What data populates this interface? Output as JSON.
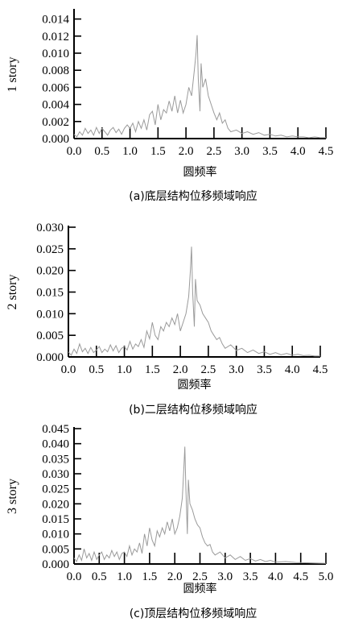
{
  "chart_data": [
    {
      "type": "line",
      "caption": "(a)底层结构位移频域响应",
      "xlabel": "圆频率",
      "ylabel": "1 story",
      "xlim": [
        0,
        4.5
      ],
      "ylim": [
        0,
        0.015
      ],
      "xticks": [
        "0.0",
        "0.5",
        "1.0",
        "1.5",
        "2.0",
        "2.5",
        "3.0",
        "3.5",
        "4.0",
        "4.5"
      ],
      "yticks": [
        "0.000",
        "0.002",
        "0.004",
        "0.006",
        "0.008",
        "0.010",
        "0.012",
        "0.014"
      ],
      "series": [
        {
          "x": [
            0,
            0.05,
            0.1,
            0.15,
            0.2,
            0.25,
            0.3,
            0.35,
            0.4,
            0.45,
            0.5,
            0.55,
            0.6,
            0.65,
            0.7,
            0.75,
            0.8,
            0.85,
            0.9,
            0.95,
            1.0,
            1.05,
            1.1,
            1.15,
            1.2,
            1.25,
            1.3,
            1.35,
            1.4,
            1.45,
            1.5,
            1.55,
            1.6,
            1.65,
            1.7,
            1.75,
            1.8,
            1.85,
            1.9,
            1.95,
            2.0,
            2.05,
            2.1,
            2.15,
            2.18,
            2.2,
            2.22,
            2.25,
            2.27,
            2.3,
            2.35,
            2.4,
            2.45,
            2.5,
            2.55,
            2.6,
            2.65,
            2.7,
            2.75,
            2.8,
            2.9,
            3.0,
            3.1,
            3.2,
            3.3,
            3.4,
            3.5,
            3.6,
            3.7,
            3.8,
            3.9,
            4.0,
            4.1,
            4.2,
            4.3,
            4.4,
            4.5
          ],
          "y": [
            0.0005,
            0.0002,
            0.0008,
            0.0004,
            0.0012,
            0.0006,
            0.001,
            0.0004,
            0.0013,
            0.0006,
            0.0012,
            0.0008,
            0.0004,
            0.001,
            0.0013,
            0.0007,
            0.0011,
            0.0005,
            0.0012,
            0.0016,
            0.0012,
            0.0018,
            0.0008,
            0.002,
            0.0012,
            0.0022,
            0.001,
            0.0028,
            0.0032,
            0.0016,
            0.004,
            0.0022,
            0.0034,
            0.003,
            0.0044,
            0.0032,
            0.005,
            0.003,
            0.0045,
            0.003,
            0.004,
            0.006,
            0.005,
            0.008,
            0.01,
            0.0121,
            0.007,
            0.0032,
            0.0088,
            0.006,
            0.007,
            0.005,
            0.004,
            0.003,
            0.0022,
            0.003,
            0.0018,
            0.0022,
            0.0012,
            0.0008,
            0.001,
            0.0006,
            0.0008,
            0.0005,
            0.0007,
            0.0004,
            0.0005,
            0.0003,
            0.0004,
            0.0002,
            0.0003,
            0.0002,
            0.0002,
            0.0001,
            0.0002,
            0.0001,
            0.0001
          ]
        }
      ]
    },
    {
      "type": "line",
      "caption": "(b)二层结构位移频域响应",
      "xlabel": "圆频率",
      "ylabel": "2 story",
      "xlim": [
        0,
        4.5
      ],
      "ylim": [
        0,
        0.03
      ],
      "xticks": [
        "0.0",
        "0.5",
        "1.0",
        "1.5",
        "2.0",
        "2.5",
        "3.0",
        "3.5",
        "4.0",
        "4.5"
      ],
      "yticks": [
        "0.000",
        "0.005",
        "0.010",
        "0.015",
        "0.020",
        "0.025",
        "0.030"
      ],
      "series": [
        {
          "x": [
            0,
            0.05,
            0.1,
            0.15,
            0.2,
            0.25,
            0.3,
            0.35,
            0.4,
            0.45,
            0.5,
            0.55,
            0.6,
            0.65,
            0.7,
            0.75,
            0.8,
            0.85,
            0.9,
            0.95,
            1.0,
            1.05,
            1.1,
            1.15,
            1.2,
            1.25,
            1.3,
            1.35,
            1.4,
            1.45,
            1.5,
            1.55,
            1.6,
            1.65,
            1.7,
            1.75,
            1.8,
            1.85,
            1.9,
            1.95,
            2.0,
            2.05,
            2.1,
            2.15,
            2.18,
            2.2,
            2.22,
            2.25,
            2.27,
            2.3,
            2.35,
            2.4,
            2.45,
            2.5,
            2.55,
            2.6,
            2.65,
            2.7,
            2.75,
            2.8,
            2.9,
            3.0,
            3.1,
            3.2,
            3.3,
            3.4,
            3.5,
            3.6,
            3.7,
            3.8,
            3.9,
            4.0,
            4.1,
            4.2,
            4.3,
            4.4,
            4.5
          ],
          "y": [
            0.0012,
            0.0004,
            0.0018,
            0.0008,
            0.003,
            0.0012,
            0.002,
            0.0008,
            0.0022,
            0.001,
            0.0016,
            0.0024,
            0.001,
            0.0018,
            0.0012,
            0.0028,
            0.0014,
            0.0026,
            0.001,
            0.002,
            0.0024,
            0.0016,
            0.0036,
            0.0018,
            0.003,
            0.0024,
            0.004,
            0.0022,
            0.006,
            0.0042,
            0.008,
            0.005,
            0.004,
            0.007,
            0.006,
            0.008,
            0.007,
            0.009,
            0.0075,
            0.01,
            0.006,
            0.008,
            0.01,
            0.014,
            0.02,
            0.0255,
            0.015,
            0.007,
            0.018,
            0.013,
            0.012,
            0.01,
            0.009,
            0.008,
            0.006,
            0.005,
            0.004,
            0.0045,
            0.003,
            0.002,
            0.0028,
            0.0015,
            0.002,
            0.001,
            0.0016,
            0.0008,
            0.0012,
            0.0006,
            0.001,
            0.0005,
            0.0008,
            0.0004,
            0.0006,
            0.0003,
            0.0004,
            0.0002,
            0.0002
          ]
        }
      ]
    },
    {
      "type": "line",
      "caption": "(c)顶层结构位移频域响应",
      "xlabel": "圆频率",
      "ylabel": "3 story",
      "xlim": [
        0,
        5.0
      ],
      "ylim": [
        0,
        0.045
      ],
      "xticks": [
        "0.0",
        "0.5",
        "1.0",
        "1.5",
        "2.0",
        "2.5",
        "3.0",
        "3.5",
        "4.0",
        "4.5",
        "5.0"
      ],
      "yticks": [
        "0.000",
        "0.005",
        "0.010",
        "0.015",
        "0.020",
        "0.025",
        "0.030",
        "0.035",
        "0.040",
        "0.045"
      ],
      "series": [
        {
          "x": [
            0,
            0.05,
            0.1,
            0.15,
            0.2,
            0.25,
            0.3,
            0.35,
            0.4,
            0.45,
            0.5,
            0.55,
            0.6,
            0.65,
            0.7,
            0.75,
            0.8,
            0.85,
            0.9,
            0.95,
            1.0,
            1.05,
            1.1,
            1.15,
            1.2,
            1.25,
            1.3,
            1.35,
            1.4,
            1.45,
            1.5,
            1.55,
            1.6,
            1.65,
            1.7,
            1.75,
            1.8,
            1.85,
            1.9,
            1.95,
            2.0,
            2.05,
            2.1,
            2.15,
            2.18,
            2.2,
            2.22,
            2.25,
            2.27,
            2.3,
            2.35,
            2.4,
            2.45,
            2.5,
            2.55,
            2.6,
            2.65,
            2.7,
            2.75,
            2.8,
            2.9,
            3.0,
            3.1,
            3.2,
            3.3,
            3.4,
            3.5,
            3.6,
            3.7,
            3.8,
            3.9,
            4.0,
            4.2,
            4.4,
            4.6,
            4.8,
            5.0
          ],
          "y": [
            0.002,
            0.0008,
            0.003,
            0.0012,
            0.005,
            0.002,
            0.0035,
            0.0012,
            0.004,
            0.0015,
            0.003,
            0.004,
            0.0015,
            0.003,
            0.002,
            0.0045,
            0.0025,
            0.004,
            0.0015,
            0.0035,
            0.004,
            0.0025,
            0.006,
            0.003,
            0.005,
            0.004,
            0.007,
            0.0035,
            0.01,
            0.006,
            0.012,
            0.008,
            0.006,
            0.011,
            0.009,
            0.012,
            0.01,
            0.014,
            0.011,
            0.015,
            0.01,
            0.012,
            0.016,
            0.022,
            0.032,
            0.039,
            0.025,
            0.01,
            0.028,
            0.02,
            0.018,
            0.015,
            0.013,
            0.012,
            0.009,
            0.007,
            0.006,
            0.0065,
            0.004,
            0.003,
            0.004,
            0.002,
            0.003,
            0.0015,
            0.0025,
            0.0012,
            0.0018,
            0.001,
            0.0015,
            0.0008,
            0.0012,
            0.0006,
            0.0008,
            0.0005,
            0.0004,
            0.0003,
            0.0002
          ]
        }
      ]
    }
  ]
}
